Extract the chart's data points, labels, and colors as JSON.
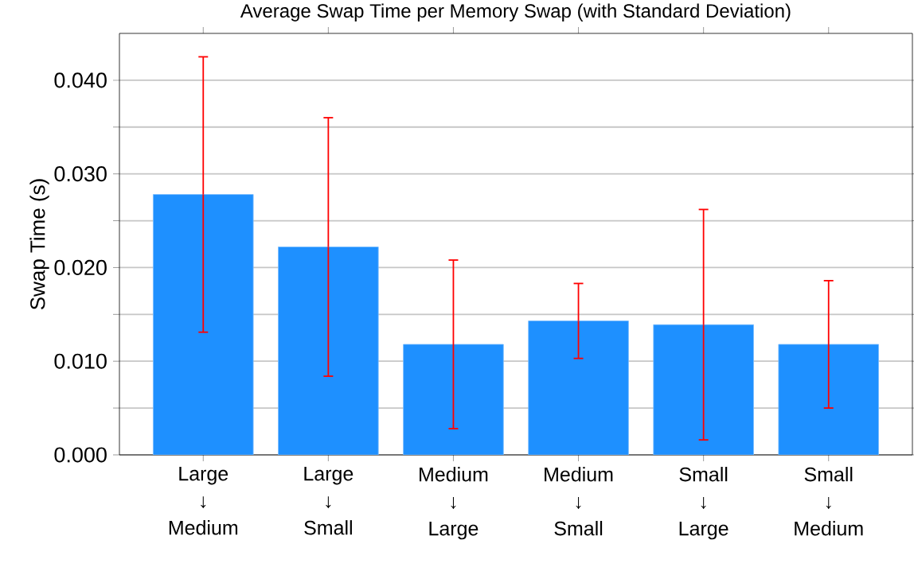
{
  "chart_data": {
    "type": "bar",
    "title": "Average Swap Time per Memory Swap (with Standard Deviation)",
    "ylabel": "Swap Time (s)",
    "categories": [
      "Large ↓ Medium",
      "Large ↓ Small",
      "Medium ↓ Large",
      "Medium ↓ Small",
      "Small ↓ Large",
      "Small ↓ Medium"
    ],
    "values": [
      0.0278,
      0.0222,
      0.0118,
      0.0143,
      0.0139,
      0.0118
    ],
    "errors": [
      0.0147,
      0.0138,
      0.009,
      0.004,
      0.0123,
      0.0068
    ],
    "color": "#1e90ff",
    "ylim": [
      0,
      0.045
    ],
    "yticks": [
      {
        "value": 0,
        "label": "0.000"
      },
      {
        "value": 0.005,
        "label": null
      },
      {
        "value": 0.01,
        "label": "0.010"
      },
      {
        "value": 0.015,
        "label": null
      },
      {
        "value": 0.02,
        "label": "0.020"
      },
      {
        "value": 0.025,
        "label": null
      },
      {
        "value": 0.03,
        "label": "0.030"
      },
      {
        "value": 0.035,
        "label": null
      },
      {
        "value": 0.04,
        "label": "0.040"
      }
    ],
    "grid": "y"
  }
}
